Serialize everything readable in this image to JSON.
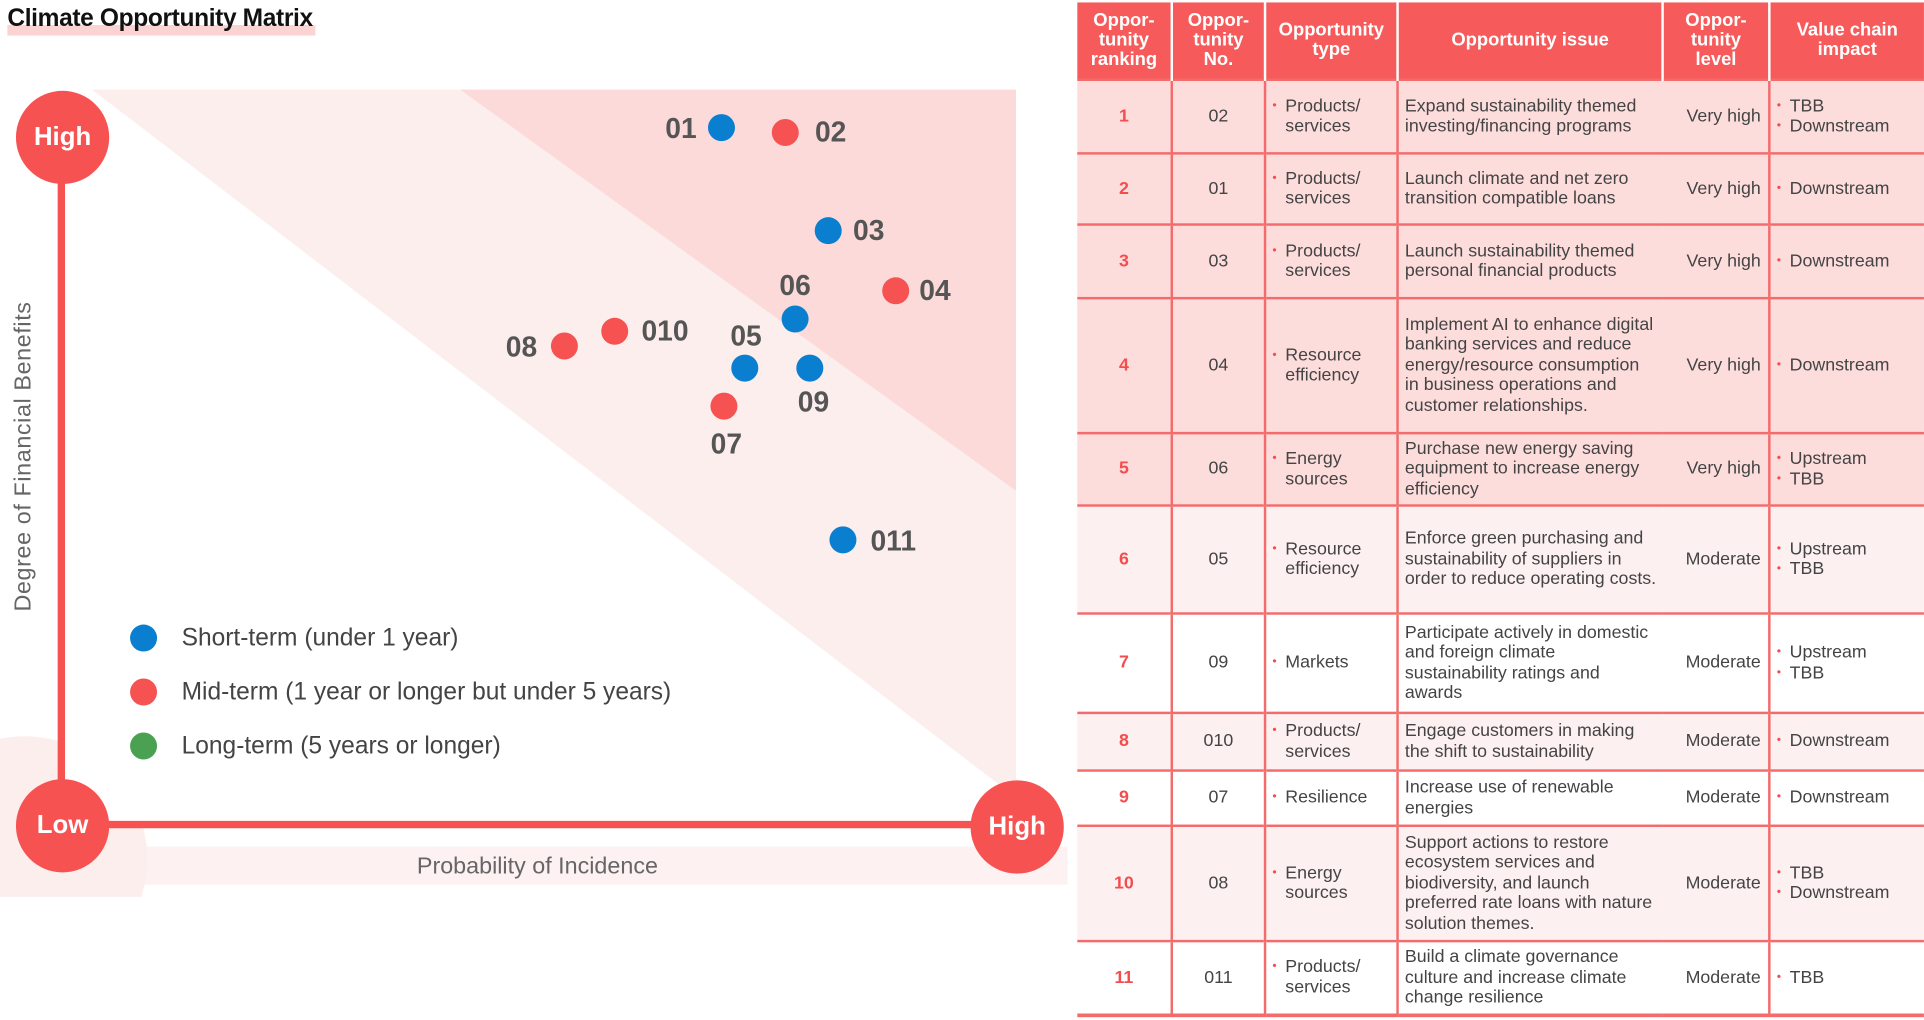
{
  "title": "Climate Opportunity Matrix",
  "matrix": {
    "y_axis_label": "Degree of Financial Benefits",
    "x_axis_label": "Probability of Incidence",
    "y_high": "High",
    "origin": "Low",
    "x_high": "High",
    "colors": {
      "short": "#0a7fcf",
      "mid": "#f75252",
      "long": "#4aa151",
      "accent": "#f75252"
    },
    "points": [
      {
        "id": "01",
        "term": "short"
      },
      {
        "id": "02",
        "term": "mid"
      },
      {
        "id": "03",
        "term": "short"
      },
      {
        "id": "04",
        "term": "mid"
      },
      {
        "id": "05",
        "term": "short"
      },
      {
        "id": "06",
        "term": "short"
      },
      {
        "id": "07",
        "term": "mid"
      },
      {
        "id": "08",
        "term": "mid"
      },
      {
        "id": "09",
        "term": "short"
      },
      {
        "id": "010",
        "term": "mid"
      },
      {
        "id": "011",
        "term": "short"
      }
    ],
    "legend": [
      {
        "term": "short",
        "label": "Short-term (under 1 year)"
      },
      {
        "term": "mid",
        "label": "Mid-term (1 year or longer but under 5 years)"
      },
      {
        "term": "long",
        "label": "Long-term (5 years or longer)"
      }
    ]
  },
  "table": {
    "headers": [
      "Oppor-\ntunity\nranking",
      "Oppor-\ntunity\nNo.",
      "Opportunity\ntype",
      "Opportunity issue",
      "Oppor-\ntunity\nlevel",
      "Value chain\nimpact"
    ],
    "rows": [
      {
        "rank": "1",
        "no": "02",
        "type": "Products/ services",
        "issue": "Expand sustainability themed investing/financing programs",
        "level": "Very high",
        "chain": [
          "TBB",
          "Downstream"
        ]
      },
      {
        "rank": "2",
        "no": "01",
        "type": "Products/ services",
        "issue": "Launch climate and net zero transition compatible loans",
        "level": "Very high",
        "chain": [
          "Downstream"
        ]
      },
      {
        "rank": "3",
        "no": "03",
        "type": "Products/ services",
        "issue": "Launch sustainability themed personal financial products",
        "level": "Very high",
        "chain": [
          "Downstream"
        ]
      },
      {
        "rank": "4",
        "no": "04",
        "type": "Resource efficiency",
        "issue": "Implement AI to enhance digital banking services and reduce energy/resource consumption in business operations and customer relationships.",
        "level": "Very high",
        "chain": [
          "Downstream"
        ]
      },
      {
        "rank": "5",
        "no": "06",
        "type": "Energy sources",
        "issue": "Purchase new energy saving equipment to increase energy efficiency",
        "level": "Very high",
        "chain": [
          "Upstream",
          "TBB"
        ]
      },
      {
        "rank": "6",
        "no": "05",
        "type": "Resource efficiency",
        "issue": "Enforce green purchasing and sustainability of suppliers in order to reduce operating costs.",
        "level": "Moderate",
        "chain": [
          "Upstream",
          "TBB"
        ]
      },
      {
        "rank": "7",
        "no": "09",
        "type": "Markets",
        "issue": "Participate actively in domestic and foreign climate sustainability ratings and awards",
        "level": "Moderate",
        "chain": [
          "Upstream",
          "TBB"
        ]
      },
      {
        "rank": "8",
        "no": "010",
        "type": "Products/ services",
        "issue": "Engage customers in making the shift to sustainability",
        "level": "Moderate",
        "chain": [
          "Downstream"
        ]
      },
      {
        "rank": "9",
        "no": "07",
        "type": "Resilience",
        "issue": "Increase use of renewable energies",
        "level": "Moderate",
        "chain": [
          "Downstream"
        ]
      },
      {
        "rank": "10",
        "no": "08",
        "type": "Energy sources",
        "issue": "Support actions to restore ecosystem services and biodiversity, and launch preferred rate loans with nature solution themes.",
        "level": "Moderate",
        "chain": [
          "TBB",
          "Downstream"
        ]
      },
      {
        "rank": "11",
        "no": "011",
        "type": "Products/ services",
        "issue": "Build a climate governance culture and increase climate change resilience",
        "level": "Moderate",
        "chain": [
          "TBB"
        ]
      }
    ]
  }
}
